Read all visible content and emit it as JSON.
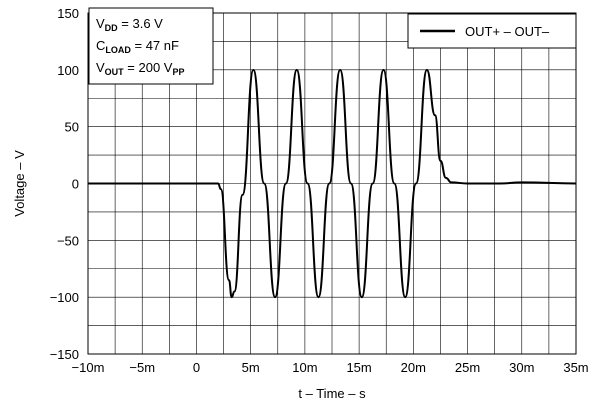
{
  "chart_data": {
    "type": "line",
    "title": "",
    "xlabel": "t – Time – s",
    "ylabel": "Voltage – V",
    "xlim": [
      -0.01,
      0.035
    ],
    "ylim": [
      -150,
      150
    ],
    "x_ticks": [
      -0.01,
      -0.005,
      0,
      0.005,
      0.01,
      0.015,
      0.02,
      0.025,
      0.03,
      0.035
    ],
    "x_tick_labels": [
      "−10m",
      "−5m",
      "0",
      "5m",
      "10m",
      "15m",
      "20m",
      "25m",
      "30m",
      "35m"
    ],
    "y_ticks": [
      150,
      100,
      50,
      0,
      -50,
      -100,
      -150
    ],
    "y_tick_labels": [
      "150",
      "100",
      "50",
      "0",
      "−50",
      "−100",
      "−150"
    ],
    "grid": true,
    "legend_position": "top-right",
    "annotation": {
      "line1": {
        "main": "V",
        "sub": "DD",
        "rest": " = 3.6 V"
      },
      "line2": {
        "main": "C",
        "sub": "LOAD",
        "rest": " = 47 nF"
      },
      "line3": {
        "main": "V",
        "sub": "OUT",
        "rest": " = 200 V",
        "sub2": "PP"
      }
    },
    "series": [
      {
        "name": "OUT+ – OUT–",
        "color": "#000000",
        "x": [
          -0.01,
          -0.005,
          0.0,
          0.002,
          0.00225,
          0.003,
          0.00325,
          0.0035,
          0.00425,
          0.00525,
          0.00625,
          0.00725,
          0.00825,
          0.00925,
          0.01025,
          0.01125,
          0.01225,
          0.01325,
          0.01425,
          0.01525,
          0.01625,
          0.01725,
          0.01825,
          0.01925,
          0.02025,
          0.02125,
          0.022,
          0.0225,
          0.023,
          0.0235,
          0.025,
          0.028,
          0.03,
          0.035
        ],
        "y": [
          0,
          0,
          0,
          0,
          -5,
          -85,
          -100,
          -95,
          -10,
          100,
          0,
          -100,
          0,
          100,
          0,
          -100,
          0,
          100,
          0,
          -100,
          0,
          100,
          0,
          -100,
          0,
          100,
          60,
          20,
          5,
          1,
          0,
          0,
          1,
          0
        ]
      }
    ]
  }
}
